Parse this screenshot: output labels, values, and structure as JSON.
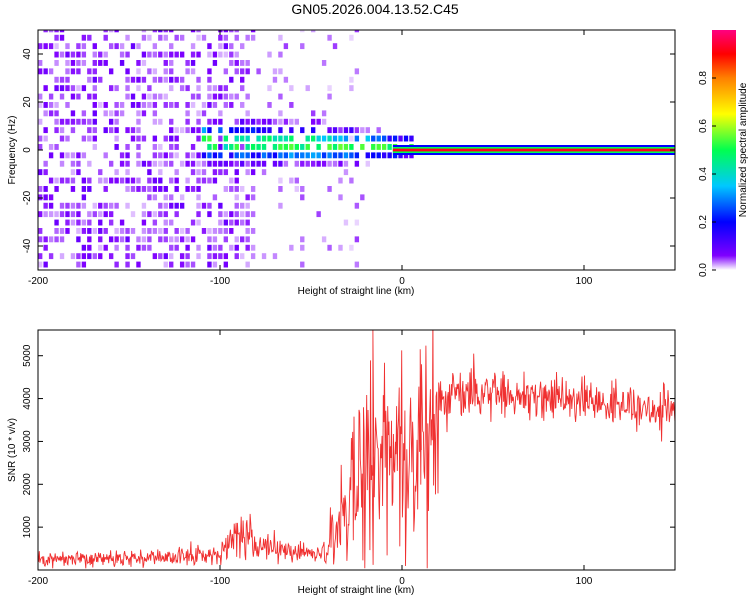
{
  "figure": {
    "title": "GN05.2026.004.13.52.C45"
  },
  "chart_data": [
    {
      "type": "heatmap",
      "xlabel": "Height of straight line (km)",
      "ylabel": "Frequency (Hz)",
      "xlim": [
        -200,
        150
      ],
      "ylim": [
        -50,
        50
      ],
      "xticks": [
        -200,
        -100,
        0,
        100
      ],
      "yticks": [
        -40,
        -20,
        0,
        20,
        40
      ],
      "colorbar": {
        "label": "Normalized spectral amplitude",
        "range": [
          0,
          1
        ],
        "ticks": [
          0.0,
          0.2,
          0.4,
          0.6,
          0.8
        ],
        "colors": [
          "#ffffff",
          "#7f00ff",
          "#0000ff",
          "#00c8ff",
          "#00ff50",
          "#ffff00",
          "#ff8000",
          "#ff0000",
          "#ff0080"
        ]
      },
      "features": {
        "noise_region_x": [
          -200,
          -80
        ],
        "sparse_region_x": [
          -80,
          -20
        ],
        "signal_line_frequency": 0,
        "signal_line_start_x": 0,
        "signal_line_amplitude": 0.9
      },
      "grid": false
    },
    {
      "type": "line",
      "xlabel": "Height of straight line (km)",
      "ylabel": "SNR (10 * v/v)",
      "xlim": [
        -200,
        150
      ],
      "ylim": [
        0,
        5600
      ],
      "xticks": [
        -200,
        -100,
        0,
        100
      ],
      "yticks": [
        1000,
        2000,
        3000,
        4000,
        5000
      ],
      "line_color": "#f03030",
      "series": [
        {
          "x": [
            -200,
            -180,
            -160,
            -140,
            -120,
            -100,
            -95,
            -90,
            -85,
            -80,
            -75,
            -70,
            -65,
            -60,
            -55,
            -50,
            -45,
            -40,
            -38,
            -35,
            -33,
            -30,
            -28,
            -25,
            -22,
            -20,
            -18,
            -16,
            -15,
            -14,
            -12,
            -10,
            -8,
            -5,
            -3,
            0,
            3,
            6,
            8,
            10,
            12,
            15,
            18,
            20,
            25,
            30,
            35,
            40,
            45,
            50,
            55,
            60,
            65,
            70,
            75,
            80,
            85,
            90,
            95,
            100,
            105,
            110,
            115,
            120,
            125,
            130,
            135,
            140,
            145,
            150
          ],
          "y": [
            250,
            260,
            260,
            280,
            300,
            400,
            650,
            750,
            900,
            700,
            550,
            500,
            450,
            400,
            450,
            400,
            350,
            500,
            1300,
            700,
            2000,
            900,
            2400,
            1300,
            3300,
            1500,
            3800,
            2200,
            1800,
            2400,
            2300,
            2600,
            2800,
            2500,
            2700,
            2900,
            3000,
            2600,
            2400,
            2800,
            3400,
            3800,
            3900,
            3950,
            4000,
            4100,
            4150,
            4150,
            4100,
            4150,
            4100,
            4100,
            4100,
            4100,
            4050,
            4050,
            4050,
            4000,
            4000,
            3950,
            3900,
            3900,
            3850,
            3850,
            3800,
            3800,
            3750,
            3750,
            3700,
            3700
          ]
        }
      ],
      "annotations": {
        "spike_x": [
          -16,
          10
        ],
        "spike_y": [
          5600,
          5150
        ]
      },
      "grid": false
    }
  ]
}
